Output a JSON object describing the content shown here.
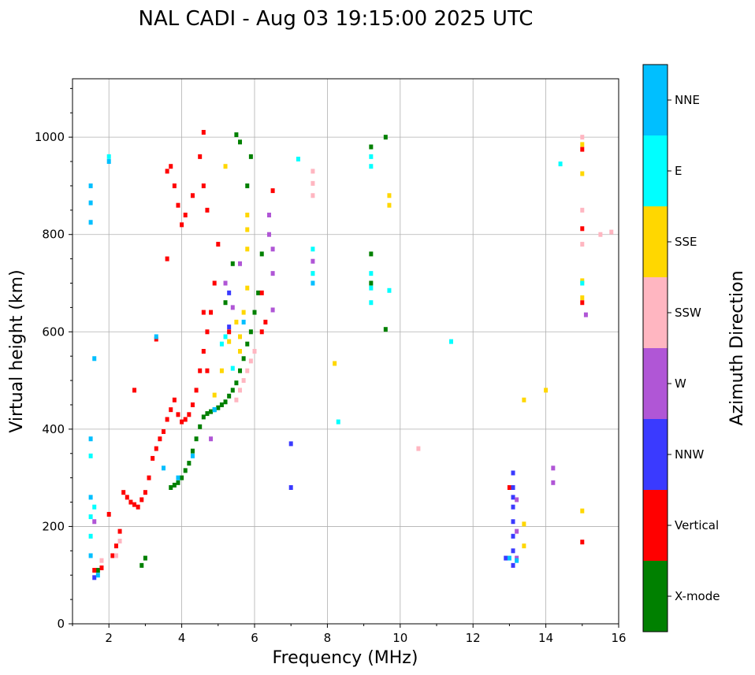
{
  "chart_data": {
    "type": "scatter",
    "title": "NAL CADI - Aug 03 19:15:00 2025 UTC",
    "xlabel": "Frequency (MHz)",
    "ylabel": "Virtual height (km)",
    "xlim": [
      1,
      16
    ],
    "ylim": [
      0,
      1120
    ],
    "grid": true,
    "x_ticks": [
      "2",
      "4",
      "6",
      "8",
      "10",
      "12",
      "14",
      "16"
    ],
    "x_tick_values": [
      2,
      4,
      6,
      8,
      10,
      12,
      14,
      16
    ],
    "y_ticks": [
      "0",
      "200",
      "400",
      "600",
      "800",
      "1000"
    ],
    "y_tick_values": [
      0,
      200,
      400,
      600,
      800,
      1000
    ],
    "colorbar": {
      "label": "Azimuth Direction",
      "categories": [
        {
          "name": "X-mode",
          "color": "#008000"
        },
        {
          "name": "Vertical",
          "color": "#ff0000"
        },
        {
          "name": "NNW",
          "color": "#3a3aff"
        },
        {
          "name": "W",
          "color": "#b056d6"
        },
        {
          "name": "SSW",
          "color": "#ffb6c1"
        },
        {
          "name": "SSE",
          "color": "#ffd700"
        },
        {
          "name": "E",
          "color": "#00ffff"
        },
        {
          "name": "NNE",
          "color": "#00bfff"
        }
      ]
    },
    "series": [
      {
        "name": "X-mode",
        "points": [
          [
            3.7,
            280
          ],
          [
            3.8,
            285
          ],
          [
            3.9,
            290
          ],
          [
            4.0,
            300
          ],
          [
            4.1,
            315
          ],
          [
            4.2,
            330
          ],
          [
            4.3,
            355
          ],
          [
            4.4,
            380
          ],
          [
            4.5,
            405
          ],
          [
            4.6,
            425
          ],
          [
            4.7,
            432
          ],
          [
            4.8,
            436
          ],
          [
            4.9,
            440
          ],
          [
            5.0,
            444
          ],
          [
            5.1,
            450
          ],
          [
            5.2,
            456
          ],
          [
            5.3,
            468
          ],
          [
            5.4,
            480
          ],
          [
            5.5,
            495
          ],
          [
            5.6,
            520
          ],
          [
            5.7,
            545
          ],
          [
            5.8,
            575
          ],
          [
            5.9,
            600
          ],
          [
            6.0,
            640
          ],
          [
            6.1,
            680
          ],
          [
            6.2,
            760
          ],
          [
            5.8,
            900
          ],
          [
            5.9,
            960
          ],
          [
            5.6,
            990
          ],
          [
            5.5,
            1005
          ],
          [
            9.2,
            700
          ],
          [
            9.2,
            760
          ],
          [
            9.2,
            980
          ],
          [
            9.6,
            605
          ],
          [
            9.6,
            1000
          ],
          [
            5.2,
            660
          ],
          [
            5.4,
            740
          ],
          [
            1.7,
            110
          ],
          [
            2.9,
            120
          ],
          [
            3.0,
            135
          ]
        ]
      },
      {
        "name": "Vertical",
        "points": [
          [
            1.6,
            110
          ],
          [
            1.8,
            115
          ],
          [
            2.0,
            225
          ],
          [
            2.1,
            140
          ],
          [
            2.2,
            160
          ],
          [
            2.3,
            190
          ],
          [
            2.4,
            270
          ],
          [
            2.5,
            260
          ],
          [
            2.6,
            250
          ],
          [
            2.7,
            245
          ],
          [
            2.8,
            240
          ],
          [
            2.9,
            255
          ],
          [
            3.0,
            270
          ],
          [
            3.1,
            300
          ],
          [
            3.2,
            340
          ],
          [
            3.3,
            360
          ],
          [
            3.4,
            380
          ],
          [
            3.5,
            395
          ],
          [
            3.6,
            420
          ],
          [
            3.7,
            440
          ],
          [
            3.8,
            460
          ],
          [
            3.9,
            430
          ],
          [
            4.0,
            415
          ],
          [
            4.1,
            420
          ],
          [
            4.2,
            430
          ],
          [
            4.3,
            450
          ],
          [
            4.4,
            480
          ],
          [
            4.5,
            520
          ],
          [
            4.6,
            560
          ],
          [
            4.7,
            600
          ],
          [
            4.8,
            640
          ],
          [
            4.9,
            700
          ],
          [
            5.0,
            780
          ],
          [
            4.7,
            850
          ],
          [
            4.6,
            900
          ],
          [
            4.5,
            960
          ],
          [
            4.6,
            1010
          ],
          [
            4.3,
            880
          ],
          [
            4.1,
            840
          ],
          [
            4.0,
            820
          ],
          [
            3.9,
            860
          ],
          [
            3.8,
            900
          ],
          [
            3.7,
            940
          ],
          [
            3.6,
            930
          ],
          [
            3.6,
            750
          ],
          [
            3.3,
            585
          ],
          [
            4.6,
            640
          ],
          [
            4.7,
            520
          ],
          [
            6.2,
            600
          ],
          [
            6.2,
            680
          ],
          [
            6.3,
            620
          ],
          [
            6.5,
            890
          ],
          [
            13.0,
            280
          ],
          [
            15.0,
            660
          ],
          [
            15.0,
            812
          ],
          [
            15.0,
            975
          ],
          [
            15.0,
            168
          ],
          [
            2.7,
            480
          ],
          [
            5.3,
            600
          ]
        ]
      },
      {
        "name": "NNW",
        "points": [
          [
            13.1,
            120
          ],
          [
            13.1,
            150
          ],
          [
            13.1,
            180
          ],
          [
            13.1,
            210
          ],
          [
            13.1,
            240
          ],
          [
            13.1,
            260
          ],
          [
            13.1,
            280
          ],
          [
            13.1,
            310
          ],
          [
            12.9,
            135
          ],
          [
            7.0,
            370
          ],
          [
            7.0,
            280
          ],
          [
            5.3,
            610
          ],
          [
            5.3,
            680
          ],
          [
            1.6,
            95
          ]
        ]
      },
      {
        "name": "W",
        "points": [
          [
            6.4,
            800
          ],
          [
            6.4,
            840
          ],
          [
            6.5,
            770
          ],
          [
            6.5,
            720
          ],
          [
            6.5,
            645
          ],
          [
            5.6,
            740
          ],
          [
            5.4,
            650
          ],
          [
            5.2,
            700
          ],
          [
            4.8,
            380
          ],
          [
            13.2,
            135
          ],
          [
            13.2,
            190
          ],
          [
            13.2,
            255
          ],
          [
            14.2,
            290
          ],
          [
            14.2,
            320
          ],
          [
            15.1,
            635
          ],
          [
            1.6,
            210
          ],
          [
            7.6,
            745
          ]
        ]
      },
      {
        "name": "SSW",
        "points": [
          [
            5.7,
            500
          ],
          [
            5.8,
            520
          ],
          [
            5.9,
            540
          ],
          [
            6.0,
            560
          ],
          [
            5.5,
            460
          ],
          [
            5.6,
            480
          ],
          [
            1.8,
            130
          ],
          [
            2.2,
            140
          ],
          [
            2.3,
            170
          ],
          [
            7.6,
            720
          ],
          [
            7.6,
            880
          ],
          [
            7.6,
            905
          ],
          [
            7.6,
            930
          ],
          [
            10.5,
            360
          ],
          [
            15.0,
            780
          ],
          [
            15.0,
            850
          ],
          [
            15.0,
            1000
          ],
          [
            15.8,
            805
          ],
          [
            15.5,
            800
          ],
          [
            15.0,
            700
          ]
        ]
      },
      {
        "name": "SSE",
        "points": [
          [
            5.6,
            560
          ],
          [
            5.6,
            590
          ],
          [
            5.5,
            620
          ],
          [
            5.7,
            640
          ],
          [
            5.8,
            690
          ],
          [
            5.8,
            770
          ],
          [
            5.8,
            810
          ],
          [
            5.8,
            840
          ],
          [
            5.3,
            580
          ],
          [
            5.2,
            940
          ],
          [
            5.1,
            520
          ],
          [
            4.9,
            470
          ],
          [
            8.2,
            535
          ],
          [
            13.4,
            160
          ],
          [
            13.4,
            205
          ],
          [
            13.4,
            460
          ],
          [
            14.0,
            480
          ],
          [
            15.0,
            232
          ],
          [
            15.0,
            670
          ],
          [
            15.0,
            705
          ],
          [
            15.0,
            925
          ],
          [
            15.0,
            985
          ],
          [
            9.7,
            860
          ],
          [
            9.7,
            880
          ]
        ]
      },
      {
        "name": "E",
        "points": [
          [
            9.2,
            660
          ],
          [
            9.2,
            690
          ],
          [
            9.2,
            720
          ],
          [
            9.2,
            940
          ],
          [
            9.2,
            960
          ],
          [
            8.3,
            415
          ],
          [
            9.7,
            685
          ],
          [
            7.6,
            720
          ],
          [
            7.6,
            770
          ],
          [
            11.4,
            580
          ],
          [
            14.4,
            945
          ],
          [
            15.0,
            700
          ],
          [
            4.9,
            440
          ],
          [
            5.2,
            590
          ],
          [
            5.1,
            575
          ],
          [
            1.5,
            345
          ],
          [
            1.6,
            240
          ],
          [
            1.5,
            220
          ],
          [
            1.5,
            180
          ],
          [
            7.2,
            955
          ],
          [
            2.0,
            960
          ],
          [
            5.4,
            525
          ]
        ]
      },
      {
        "name": "NNE",
        "points": [
          [
            1.5,
            825
          ],
          [
            1.5,
            865
          ],
          [
            1.5,
            900
          ],
          [
            1.5,
            380
          ],
          [
            1.5,
            140
          ],
          [
            1.7,
            100
          ],
          [
            1.6,
            545
          ],
          [
            3.9,
            300
          ],
          [
            3.5,
            320
          ],
          [
            4.3,
            345
          ],
          [
            4.9,
            440
          ],
          [
            5.7,
            620
          ],
          [
            3.3,
            590
          ],
          [
            7.6,
            700
          ],
          [
            13.2,
            130
          ],
          [
            13.0,
            135
          ],
          [
            1.5,
            260
          ],
          [
            2.0,
            950
          ]
        ]
      }
    ]
  }
}
